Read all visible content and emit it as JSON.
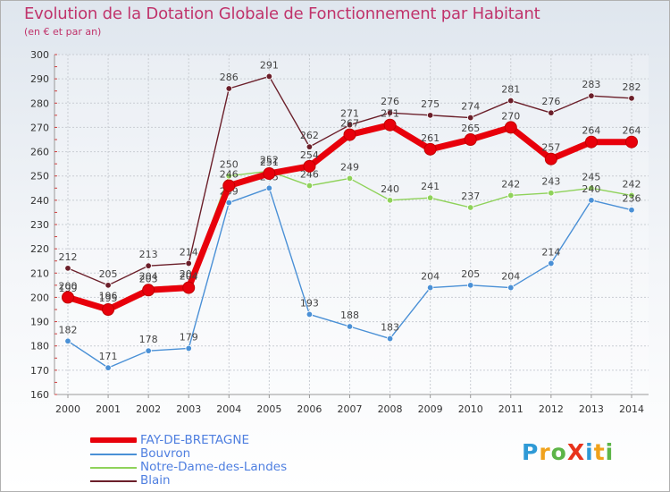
{
  "title": "Evolution de la Dotation Globale de Fonctionnement par Habitant",
  "subtitle": "(en € et par an)",
  "brand": {
    "text": "ProXiti",
    "colors": [
      "#2f9ad6",
      "#f0a21c",
      "#5db548",
      "#e8331c",
      "#2f9ad6",
      "#f0a21c",
      "#5db548"
    ]
  },
  "chart_data": {
    "type": "line",
    "title": "Evolution de la Dotation Globale de Fonctionnement par Habitant",
    "subtitle": "(en € et par an)",
    "xlabel": "",
    "ylabel": "",
    "categories": [
      "2000",
      "2001",
      "2002",
      "2003",
      "2004",
      "2005",
      "2006",
      "2007",
      "2008",
      "2009",
      "2010",
      "2011",
      "2012",
      "2013",
      "2014"
    ],
    "ylim": [
      160,
      300
    ],
    "yticks": [
      "160",
      "170",
      "180",
      "190",
      "200",
      "210",
      "220",
      "230",
      "240",
      "250",
      "260",
      "270",
      "280",
      "290",
      "300"
    ],
    "grid": true,
    "legend_position": "bottom-left",
    "series": [
      {
        "name": "Blain",
        "color": "#6b1f2a",
        "values": [
          212,
          205,
          213,
          214,
          286,
          291,
          262,
          271,
          276,
          275,
          274,
          281,
          276,
          283,
          282
        ],
        "labels": [
          "212",
          "205",
          "213",
          "214",
          "286",
          "291",
          "262",
          "271",
          "276",
          "275",
          "274",
          "281",
          "276",
          "283",
          "282"
        ]
      },
      {
        "name": "Notre-Dame-des-Landes",
        "color": "#8fd25a",
        "values": [
          199,
          196,
          204,
          205,
          250,
          252,
          246,
          249,
          240,
          241,
          237,
          242,
          243,
          245,
          242
        ],
        "labels": [
          "199",
          "196",
          "204",
          "205",
          "250",
          "252",
          "246",
          "249",
          "240",
          "241",
          "237",
          "242",
          "243",
          "245",
          "242"
        ]
      },
      {
        "name": "Bouvron",
        "color": "#4a90d6",
        "values": [
          182,
          171,
          178,
          179,
          239,
          245,
          193,
          188,
          183,
          204,
          205,
          204,
          214,
          240,
          236
        ],
        "labels": [
          "182",
          "171",
          "178",
          "179",
          "239",
          "245",
          "193",
          "188",
          "183",
          "204",
          "205",
          "204",
          "214",
          "240",
          "236"
        ]
      },
      {
        "name": "FAY-DE-BRETAGNE",
        "color": "#e8000b",
        "values": [
          200,
          195,
          203,
          204,
          246,
          251,
          254,
          267,
          271,
          261,
          265,
          270,
          257,
          264,
          264
        ],
        "labels": [
          "200",
          "195",
          "203",
          "204",
          "246",
          "251",
          "254",
          "267",
          "271",
          "261",
          "265",
          "270",
          "257",
          "264",
          "264"
        ]
      }
    ],
    "legend": [
      {
        "name": "FAY-DE-BRETAGNE",
        "color": "#e8000b"
      },
      {
        "name": "Bouvron",
        "color": "#4a90d6"
      },
      {
        "name": "Notre-Dame-des-Landes",
        "color": "#8fd25a"
      },
      {
        "name": "Blain",
        "color": "#6b1f2a"
      }
    ]
  }
}
